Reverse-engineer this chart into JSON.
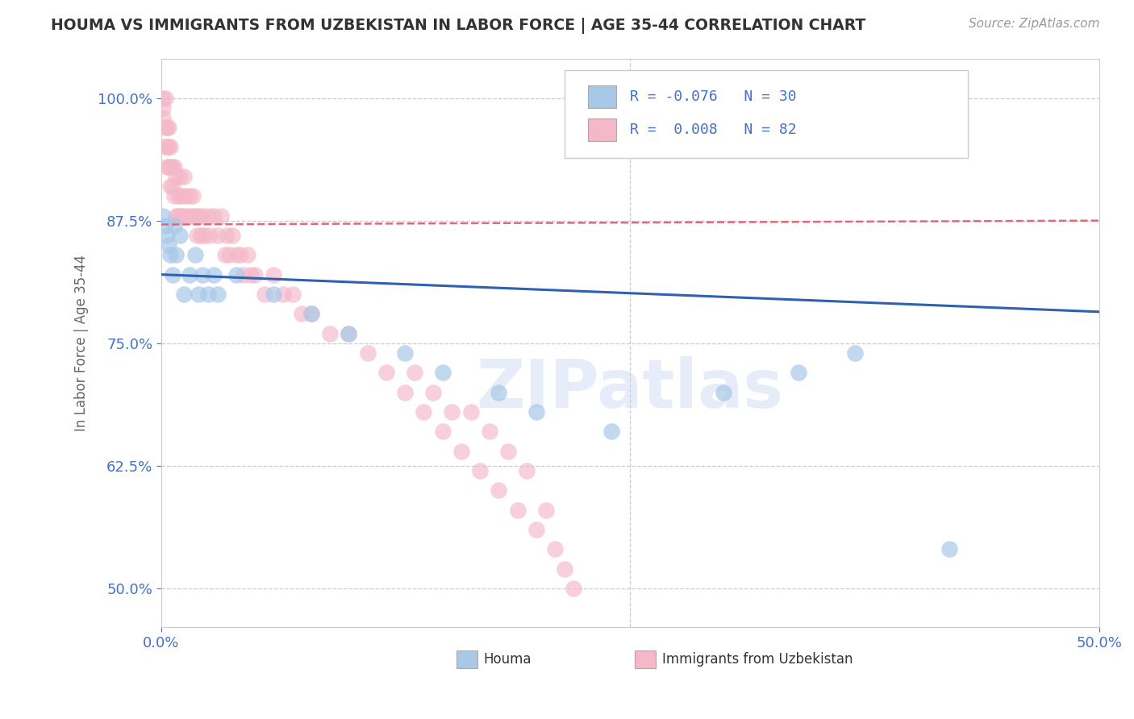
{
  "title": "HOUMA VS IMMIGRANTS FROM UZBEKISTAN IN LABOR FORCE | AGE 35-44 CORRELATION CHART",
  "source_text": "Source: ZipAtlas.com",
  "ylabel": "In Labor Force | Age 35-44",
  "xlim": [
    0.0,
    0.5
  ],
  "ylim": [
    0.46,
    1.04
  ],
  "xtick_labels": [
    "0.0%",
    "50.0%"
  ],
  "xtick_positions": [
    0.0,
    0.5
  ],
  "ytick_labels": [
    "50.0%",
    "62.5%",
    "75.0%",
    "87.5%",
    "100.0%"
  ],
  "ytick_positions": [
    0.5,
    0.625,
    0.75,
    0.875,
    1.0
  ],
  "houma_color": "#a8c8e8",
  "uzbek_color": "#f4b8c8",
  "houma_trend_color": "#3060b0",
  "uzbek_trend_color": "#e06878",
  "houma_trendline_x": [
    0.0,
    0.5
  ],
  "houma_trendline_y": [
    0.82,
    0.782
  ],
  "uzbek_trendline_x": [
    0.0,
    0.5
  ],
  "uzbek_trendline_y": [
    0.871,
    0.875
  ],
  "houma_scatter_x": [
    0.001,
    0.002,
    0.003,
    0.004,
    0.005,
    0.006,
    0.007,
    0.008,
    0.01,
    0.012,
    0.015,
    0.018,
    0.02,
    0.022,
    0.025,
    0.028,
    0.03,
    0.04,
    0.06,
    0.08,
    0.1,
    0.13,
    0.15,
    0.18,
    0.2,
    0.24,
    0.3,
    0.34,
    0.37,
    0.42
  ],
  "houma_scatter_y": [
    0.88,
    0.87,
    0.86,
    0.85,
    0.84,
    0.82,
    0.87,
    0.84,
    0.86,
    0.8,
    0.82,
    0.84,
    0.8,
    0.82,
    0.8,
    0.82,
    0.8,
    0.82,
    0.8,
    0.78,
    0.76,
    0.74,
    0.72,
    0.7,
    0.68,
    0.66,
    0.7,
    0.72,
    0.74,
    0.54
  ],
  "uzbek_scatter_x": [
    0.001,
    0.001,
    0.001,
    0.002,
    0.002,
    0.002,
    0.003,
    0.003,
    0.003,
    0.004,
    0.004,
    0.004,
    0.005,
    0.005,
    0.005,
    0.006,
    0.006,
    0.007,
    0.007,
    0.008,
    0.008,
    0.009,
    0.009,
    0.01,
    0.01,
    0.011,
    0.012,
    0.012,
    0.013,
    0.014,
    0.015,
    0.016,
    0.017,
    0.018,
    0.019,
    0.02,
    0.021,
    0.022,
    0.023,
    0.025,
    0.026,
    0.028,
    0.03,
    0.032,
    0.034,
    0.035,
    0.036,
    0.038,
    0.04,
    0.042,
    0.044,
    0.046,
    0.048,
    0.05,
    0.055,
    0.06,
    0.065,
    0.07,
    0.075,
    0.08,
    0.09,
    0.1,
    0.11,
    0.12,
    0.13,
    0.135,
    0.14,
    0.145,
    0.15,
    0.155,
    0.16,
    0.165,
    0.17,
    0.175,
    0.18,
    0.185,
    0.19,
    0.195,
    0.2,
    0.205,
    0.21,
    0.215,
    0.22
  ],
  "uzbek_scatter_y": [
    1.0,
    0.99,
    0.98,
    1.0,
    0.97,
    0.95,
    0.97,
    0.95,
    0.93,
    0.97,
    0.95,
    0.93,
    0.95,
    0.93,
    0.91,
    0.93,
    0.91,
    0.93,
    0.9,
    0.92,
    0.88,
    0.9,
    0.88,
    0.92,
    0.88,
    0.9,
    0.92,
    0.88,
    0.9,
    0.88,
    0.9,
    0.88,
    0.9,
    0.88,
    0.86,
    0.88,
    0.86,
    0.88,
    0.86,
    0.88,
    0.86,
    0.88,
    0.86,
    0.88,
    0.84,
    0.86,
    0.84,
    0.86,
    0.84,
    0.84,
    0.82,
    0.84,
    0.82,
    0.82,
    0.8,
    0.82,
    0.8,
    0.8,
    0.78,
    0.78,
    0.76,
    0.76,
    0.74,
    0.72,
    0.7,
    0.72,
    0.68,
    0.7,
    0.66,
    0.68,
    0.64,
    0.68,
    0.62,
    0.66,
    0.6,
    0.64,
    0.58,
    0.62,
    0.56,
    0.58,
    0.54,
    0.52,
    0.5
  ],
  "watermark": "ZIPatlas",
  "background_color": "#ffffff",
  "grid_color": "#cccccc"
}
